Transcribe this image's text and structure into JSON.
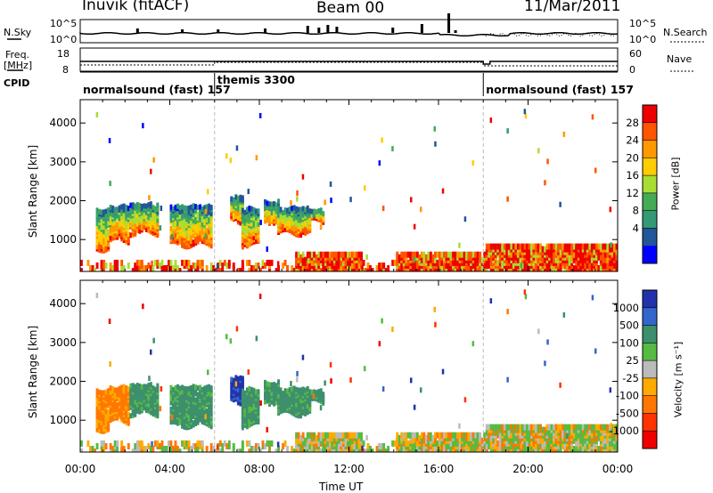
{
  "header": {
    "station": "Inuvik (fitACF)",
    "beam": "Beam 00",
    "date": "11/Mar/2011"
  },
  "noise_panel": {
    "left_label": "N.Sky",
    "right_label": "N.Search",
    "left_ticks": [
      "10^5",
      "10^0"
    ],
    "right_ticks": [
      "10^5",
      "10^0"
    ]
  },
  "freq_panel": {
    "left_label_1": "Freq.",
    "left_label_2": "[MHz]",
    "right_label": "Nave",
    "left_ticks": [
      "18",
      "8"
    ],
    "right_ticks": [
      "60",
      "0"
    ]
  },
  "cpid": {
    "label": "CPID",
    "segments": [
      {
        "name": "normalsound (fast) 157",
        "start": 0,
        "end": 6
      },
      {
        "name": "themis 3300",
        "start": 6,
        "end": 18
      },
      {
        "name": "normalsound (fast) 157",
        "start": 18,
        "end": 24
      }
    ]
  },
  "x_axis": {
    "label": "Time UT",
    "ticks": [
      "00:00",
      "04:00",
      "08:00",
      "12:00",
      "16:00",
      "20:00",
      "00:00"
    ],
    "range_hours": [
      0,
      24
    ]
  },
  "chart_data": [
    {
      "type": "heatmap",
      "panel": "power",
      "ylabel": "Slant Range [km]",
      "ylim": [
        180,
        4600
      ],
      "yticks": [
        1000,
        2000,
        3000,
        4000
      ],
      "colorbar": {
        "label": "Power [dB]",
        "ticks": [
          "28",
          "24",
          "20",
          "16",
          "12",
          "8",
          "4"
        ],
        "colors": [
          "#ee0000",
          "#ff5500",
          "#ff9900",
          "#ffcc00",
          "#aadd33",
          "#44aa55",
          "#339977",
          "#225599",
          "#0000ff"
        ]
      }
    },
    {
      "type": "heatmap",
      "panel": "velocity",
      "ylabel": "Slant Range [km]",
      "ylim": [
        180,
        4600
      ],
      "yticks": [
        1000,
        2000,
        3000,
        4000
      ],
      "colorbar": {
        "label": "Velocity [m s⁻¹]",
        "ticks": [
          "1000",
          "500",
          "100",
          "25",
          "-25",
          "-100",
          "-500",
          "-1000"
        ],
        "colors": [
          "#2233aa",
          "#3366cc",
          "#3d8f6e",
          "#55bb44",
          "#bbbbbb",
          "#ffaa00",
          "#ff7700",
          "#ff3300",
          "#ee0000"
        ]
      }
    }
  ]
}
